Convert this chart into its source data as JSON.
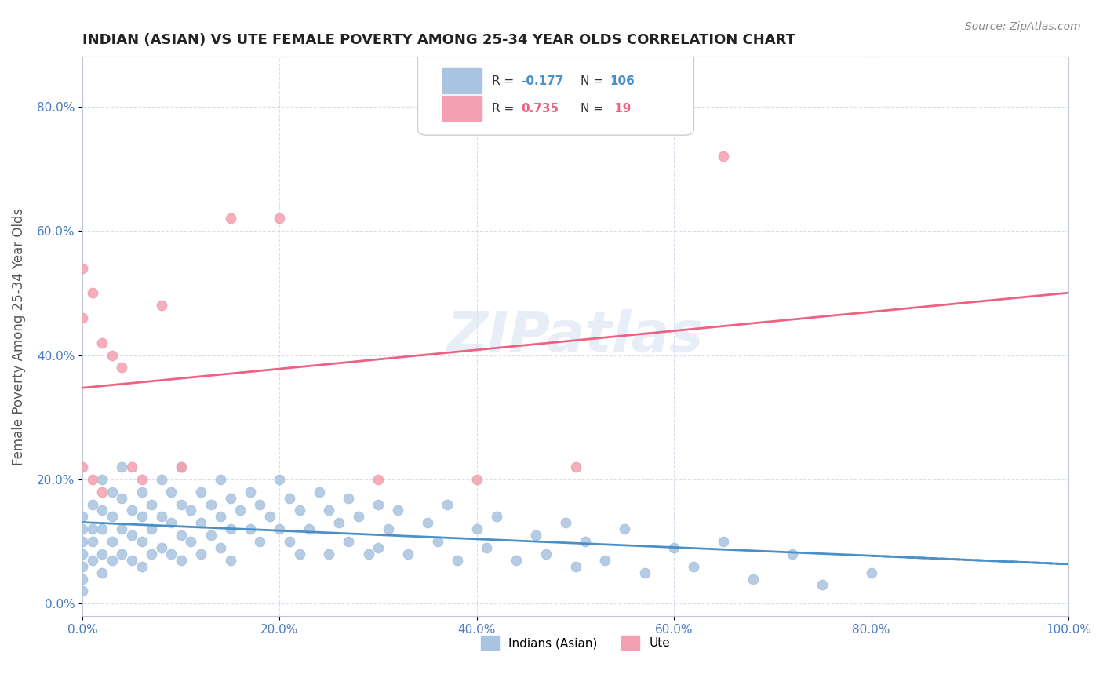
{
  "title": "INDIAN (ASIAN) VS UTE FEMALE POVERTY AMONG 25-34 YEAR OLDS CORRELATION CHART",
  "source_text": "Source: ZipAtlas.com",
  "xlabel": "",
  "ylabel": "Female Poverty Among 25-34 Year Olds",
  "xlim": [
    0,
    1
  ],
  "ylim": [
    -0.02,
    0.88
  ],
  "xticks": [
    0.0,
    0.2,
    0.4,
    0.6,
    0.8,
    1.0
  ],
  "xtick_labels": [
    "0.0%",
    "20.0%",
    "40.0%",
    "60.0%",
    "80.0%",
    "100.0%"
  ],
  "ytick_positions": [
    0.0,
    0.2,
    0.4,
    0.6,
    0.8
  ],
  "ytick_labels": [
    "0.0%",
    "20.0%",
    "40.0%",
    "60.0%",
    "80.0%"
  ],
  "indian_color": "#a8c4e0",
  "ute_color": "#f4a0b0",
  "indian_line_color": "#4a90c8",
  "ute_line_color": "#f06080",
  "indian_R": -0.177,
  "indian_N": 106,
  "ute_R": 0.735,
  "ute_N": 19,
  "watermark": "ZIPatlas",
  "background_color": "#ffffff",
  "grid_color": "#d0d8e8",
  "indian_scatter_x": [
    0.0,
    0.0,
    0.0,
    0.0,
    0.0,
    0.0,
    0.0,
    0.01,
    0.01,
    0.01,
    0.01,
    0.02,
    0.02,
    0.02,
    0.02,
    0.02,
    0.03,
    0.03,
    0.03,
    0.03,
    0.04,
    0.04,
    0.04,
    0.04,
    0.05,
    0.05,
    0.05,
    0.06,
    0.06,
    0.06,
    0.06,
    0.07,
    0.07,
    0.07,
    0.08,
    0.08,
    0.08,
    0.09,
    0.09,
    0.09,
    0.1,
    0.1,
    0.1,
    0.1,
    0.11,
    0.11,
    0.12,
    0.12,
    0.12,
    0.13,
    0.13,
    0.14,
    0.14,
    0.14,
    0.15,
    0.15,
    0.15,
    0.16,
    0.17,
    0.17,
    0.18,
    0.18,
    0.19,
    0.2,
    0.2,
    0.21,
    0.21,
    0.22,
    0.22,
    0.23,
    0.24,
    0.25,
    0.25,
    0.26,
    0.27,
    0.27,
    0.28,
    0.29,
    0.3,
    0.3,
    0.31,
    0.32,
    0.33,
    0.35,
    0.36,
    0.37,
    0.38,
    0.4,
    0.41,
    0.42,
    0.44,
    0.46,
    0.47,
    0.49,
    0.5,
    0.51,
    0.53,
    0.55,
    0.57,
    0.6,
    0.62,
    0.65,
    0.68,
    0.72,
    0.75,
    0.8
  ],
  "indian_scatter_y": [
    0.14,
    0.12,
    0.1,
    0.08,
    0.06,
    0.04,
    0.02,
    0.16,
    0.12,
    0.1,
    0.07,
    0.2,
    0.15,
    0.12,
    0.08,
    0.05,
    0.18,
    0.14,
    0.1,
    0.07,
    0.22,
    0.17,
    0.12,
    0.08,
    0.15,
    0.11,
    0.07,
    0.18,
    0.14,
    0.1,
    0.06,
    0.16,
    0.12,
    0.08,
    0.2,
    0.14,
    0.09,
    0.18,
    0.13,
    0.08,
    0.22,
    0.16,
    0.11,
    0.07,
    0.15,
    0.1,
    0.18,
    0.13,
    0.08,
    0.16,
    0.11,
    0.2,
    0.14,
    0.09,
    0.17,
    0.12,
    0.07,
    0.15,
    0.18,
    0.12,
    0.16,
    0.1,
    0.14,
    0.2,
    0.12,
    0.17,
    0.1,
    0.15,
    0.08,
    0.12,
    0.18,
    0.15,
    0.08,
    0.13,
    0.17,
    0.1,
    0.14,
    0.08,
    0.16,
    0.09,
    0.12,
    0.15,
    0.08,
    0.13,
    0.1,
    0.16,
    0.07,
    0.12,
    0.09,
    0.14,
    0.07,
    0.11,
    0.08,
    0.13,
    0.06,
    0.1,
    0.07,
    0.12,
    0.05,
    0.09,
    0.06,
    0.1,
    0.04,
    0.08,
    0.03,
    0.05
  ],
  "ute_scatter_x": [
    0.0,
    0.0,
    0.0,
    0.01,
    0.01,
    0.02,
    0.02,
    0.03,
    0.04,
    0.05,
    0.06,
    0.08,
    0.1,
    0.15,
    0.2,
    0.3,
    0.4,
    0.5,
    0.65
  ],
  "ute_scatter_y": [
    0.54,
    0.46,
    0.22,
    0.5,
    0.2,
    0.42,
    0.18,
    0.4,
    0.38,
    0.22,
    0.2,
    0.48,
    0.22,
    0.62,
    0.62,
    0.2,
    0.2,
    0.22,
    0.72
  ]
}
